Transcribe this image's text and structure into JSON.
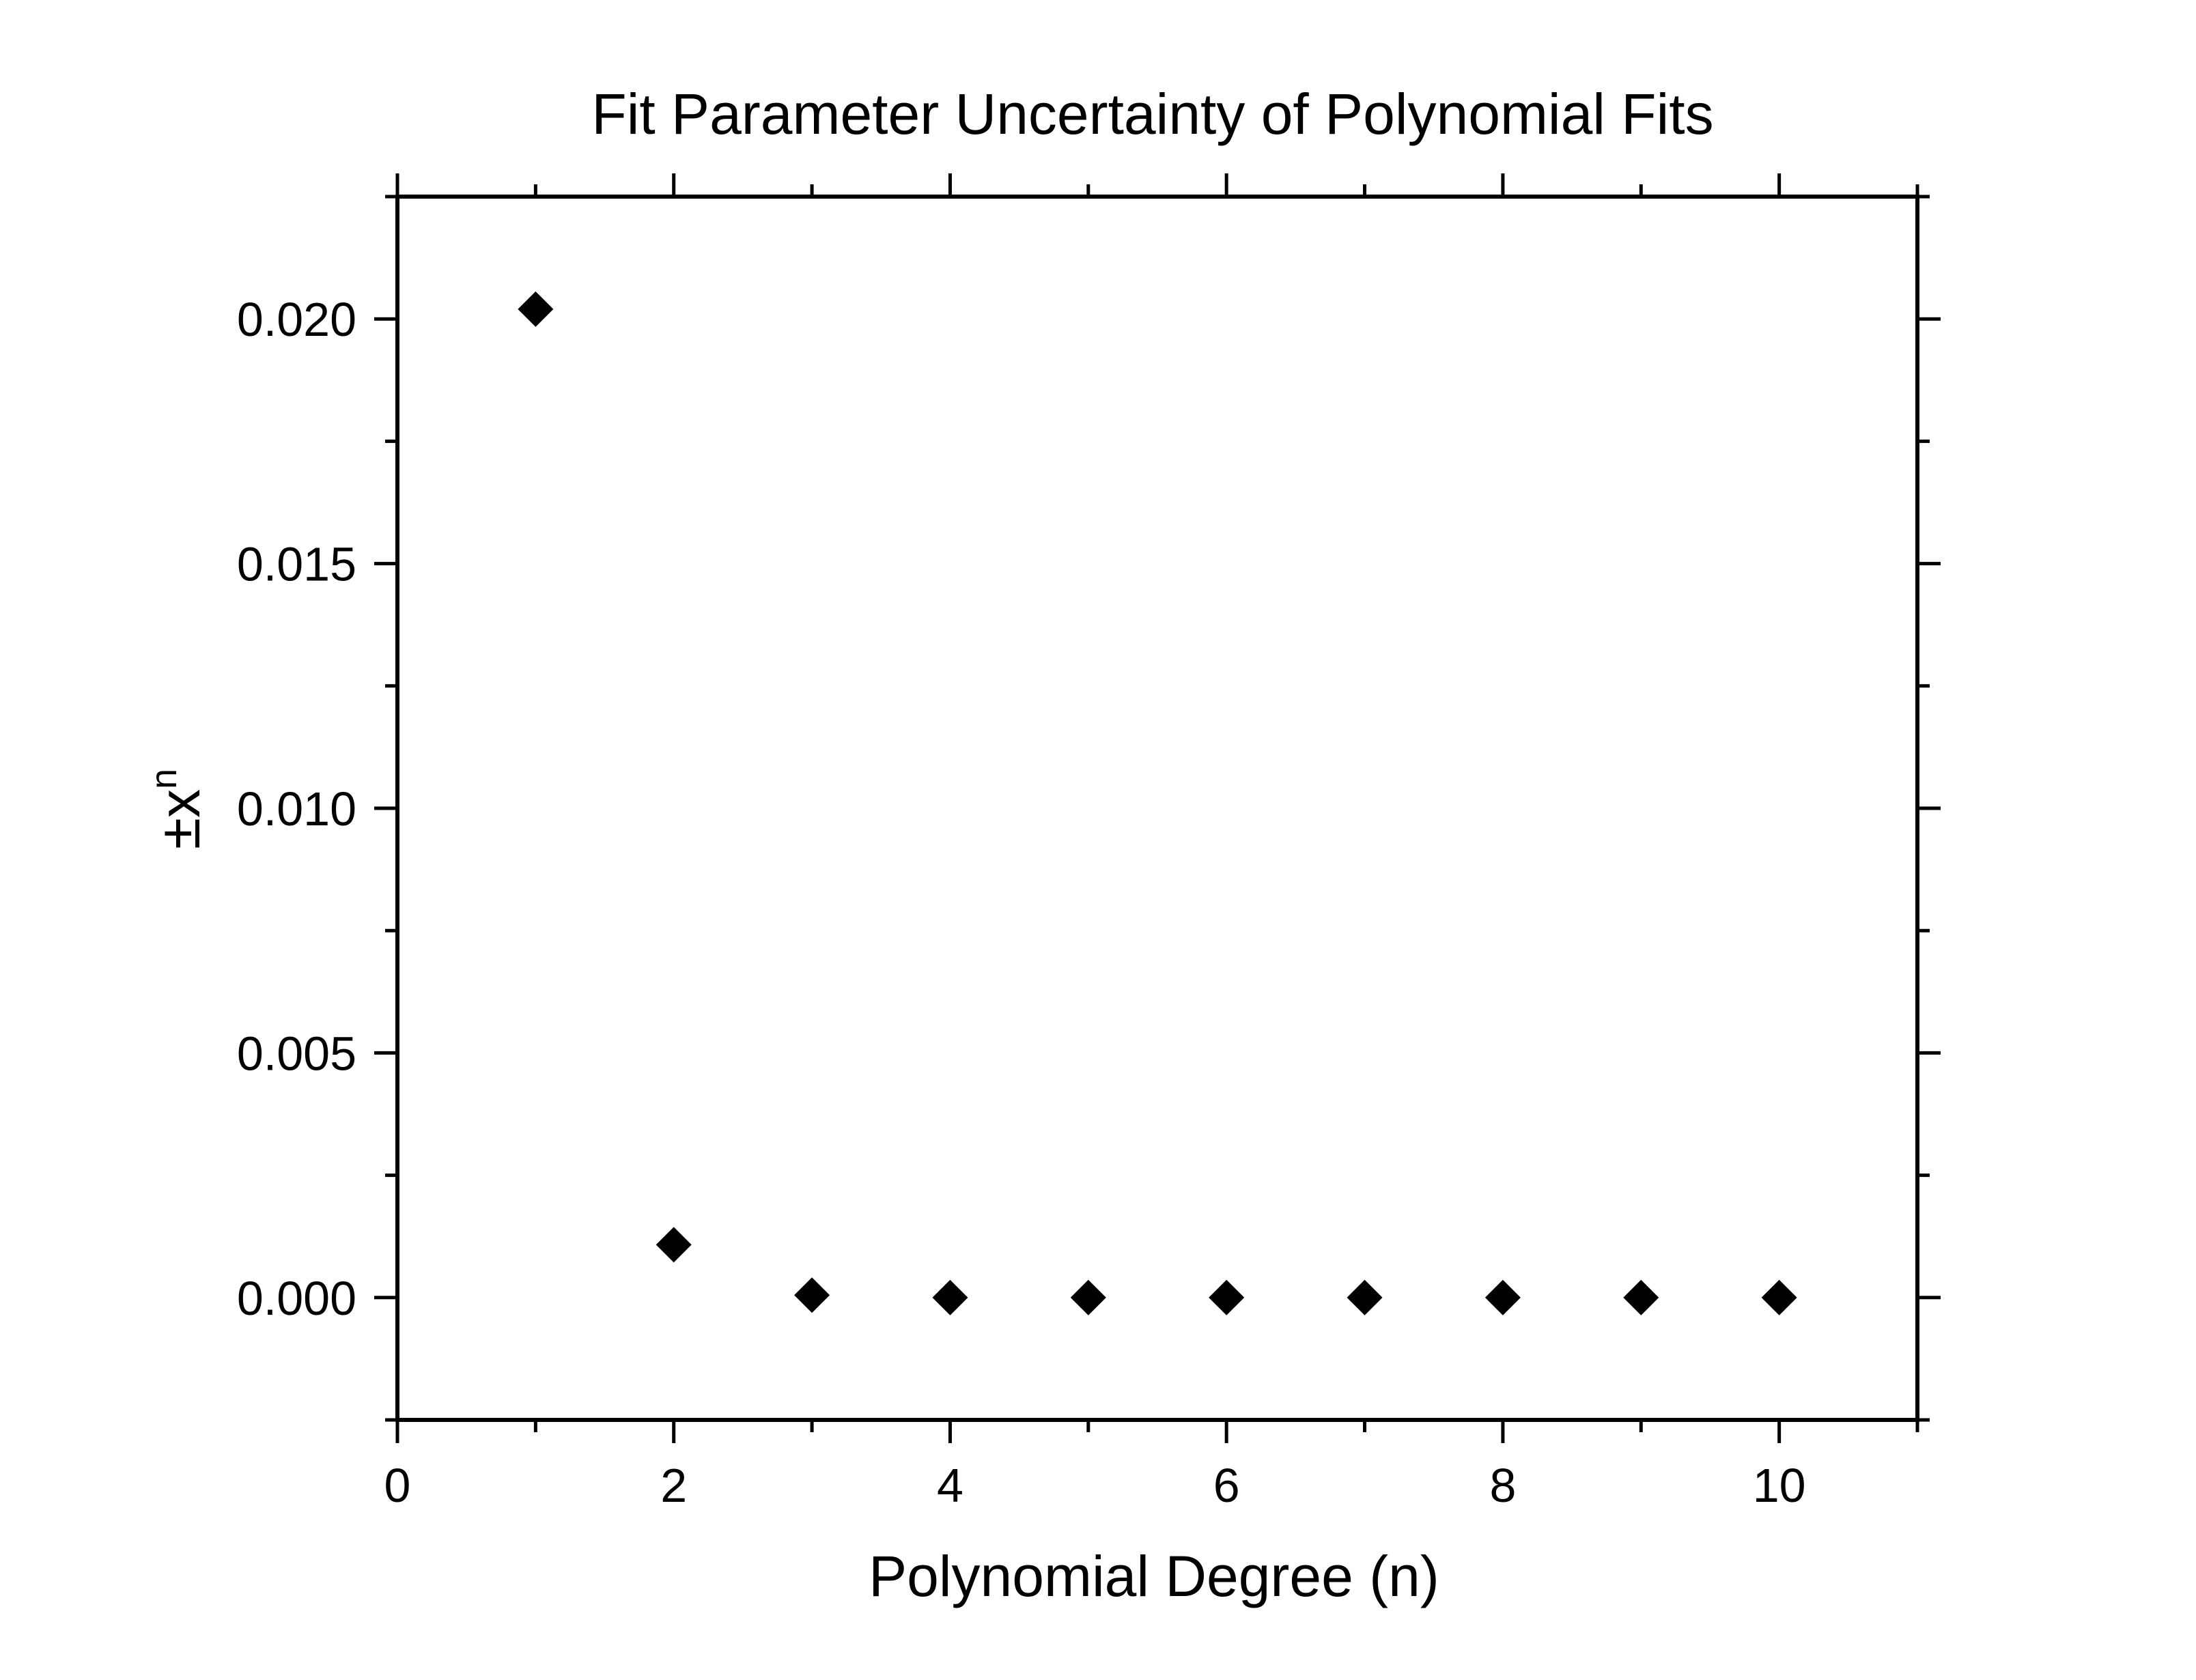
{
  "chart_data": {
    "type": "scatter",
    "title": "Fit Parameter Uncertainty of Polynomial Fits",
    "xlabel": "Polynomial Degree (n)",
    "ylabel": "±x",
    "ylabel_superscript": "n",
    "xlim": [
      0,
      11
    ],
    "ylim": [
      -0.0025,
      0.0225
    ],
    "x_ticks": [
      0,
      2,
      4,
      6,
      8,
      10
    ],
    "x_tick_labels": [
      "0",
      "2",
      "4",
      "6",
      "8",
      "10"
    ],
    "x_minor_ticks": [
      1,
      3,
      5,
      7,
      9,
      11
    ],
    "y_ticks": [
      0.0,
      0.005,
      0.01,
      0.015,
      0.02
    ],
    "y_tick_labels": [
      "0.000",
      "0.005",
      "0.010",
      "0.015",
      "0.020"
    ],
    "y_minor_ticks": [
      -0.0025,
      0.0025,
      0.0075,
      0.0125,
      0.0175,
      0.0225
    ],
    "grid": false,
    "legend": "none",
    "marker": "diamond",
    "marker_color": "#000000",
    "series": [
      {
        "x": [
          1,
          2,
          3,
          4,
          5,
          6,
          7,
          8,
          9,
          10
        ],
        "y": [
          0.0202,
          0.00108,
          5e-05,
          0.0,
          0.0,
          0.0,
          0.0,
          0.0,
          0.0,
          0.0
        ]
      }
    ]
  }
}
